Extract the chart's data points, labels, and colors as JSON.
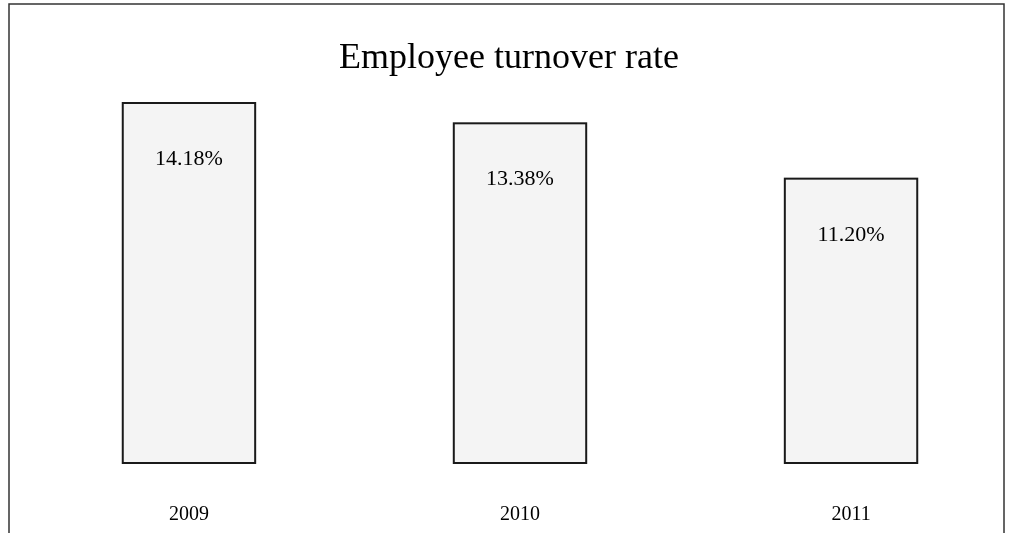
{
  "chart_data": {
    "type": "bar",
    "title": "Employee turnover rate",
    "categories": [
      "2009",
      "2010",
      "2011"
    ],
    "values": [
      14.18,
      13.38,
      11.2
    ],
    "value_labels": [
      "14.18%",
      "13.38%",
      "11.20%"
    ],
    "color": "#f4f4f4"
  }
}
